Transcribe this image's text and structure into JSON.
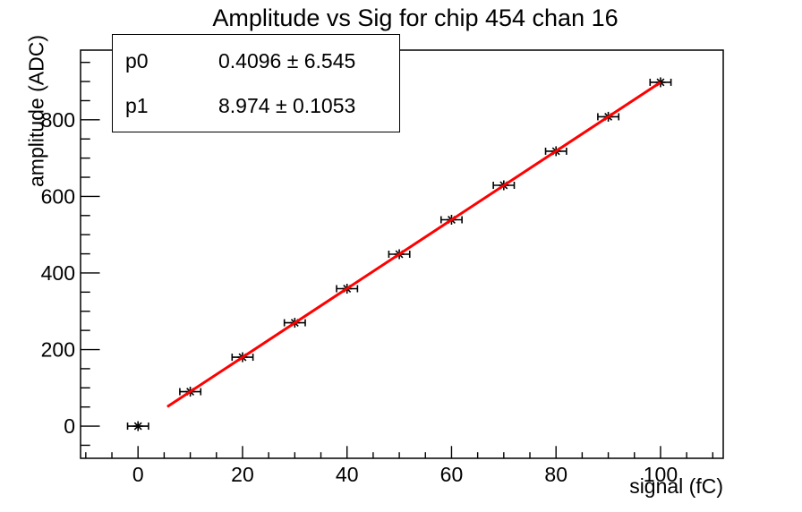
{
  "title": "Amplitude vs Sig for chip 454 chan 16",
  "stats_box": {
    "rows": [
      {
        "name": "p0",
        "value": "0.4096 ± 6.545"
      },
      {
        "name": "p1",
        "value": "8.974 ± 0.1053"
      }
    ]
  },
  "chart_data": {
    "type": "scatter",
    "title": "Amplitude vs Sig for chip 454 chan 16",
    "xlabel": "signal (fC)",
    "ylabel": "amplitude (ADC)",
    "xlim": [
      -11,
      112
    ],
    "ylim": [
      -84,
      982
    ],
    "grid": false,
    "legend": "none",
    "x_major_ticks": [
      0,
      20,
      40,
      60,
      80,
      100
    ],
    "x_minor_step": 5,
    "y_major_ticks": [
      0,
      200,
      400,
      600,
      800
    ],
    "y_minor_step": 50,
    "points": {
      "x": [
        0,
        10,
        20,
        30,
        40,
        50,
        60,
        70,
        80,
        90,
        100
      ],
      "y": [
        0,
        90,
        180,
        270,
        359,
        449,
        539,
        629,
        718,
        808,
        898
      ],
      "xerr": 2
    },
    "fit": {
      "p0": 0.4096,
      "p0_err": 6.545,
      "p1": 8.974,
      "p1_err": 0.1053,
      "range": [
        5.6,
        100
      ],
      "color": "#ff0000"
    },
    "marker": "asterisk",
    "colors": {
      "marker": "#000000",
      "axis": "#000000",
      "background": "#ffffff"
    }
  }
}
